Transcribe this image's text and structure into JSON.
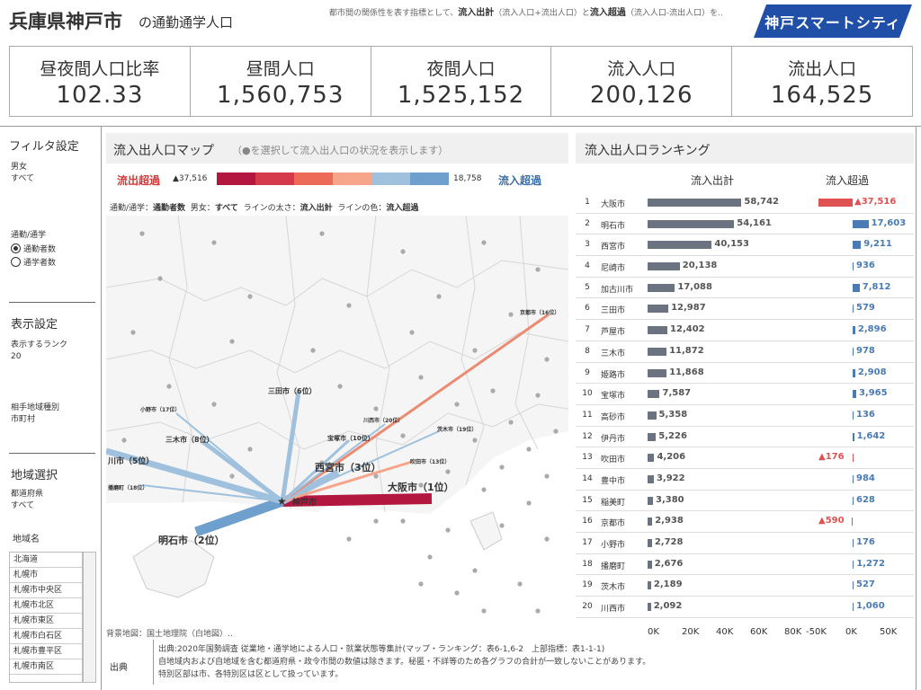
{
  "header": {
    "title": "兵庫県神戸市",
    "subtitle": "の通勤通学人口",
    "desc_prefix": "都市間の関係性を表す指標として、",
    "desc_b1": "流入出計",
    "desc_mid": "（流入人口+流出人口）と",
    "desc_b2": "流入超過",
    "desc_suffix": "（流入人口-流出人口）を..",
    "logo_text": "神戸スマートシティ"
  },
  "kpis": [
    {
      "label": "昼夜間人口比率",
      "value": "102.33"
    },
    {
      "label": "昼間人口",
      "value": "1,560,753"
    },
    {
      "label": "夜間人口",
      "value": "1,525,152"
    },
    {
      "label": "流入人口",
      "value": "200,126"
    },
    {
      "label": "流出人口",
      "value": "164,525"
    }
  ],
  "sidebar": {
    "filter_title": "フィルタ設定",
    "gender_label": "男女",
    "gender_value": "すべて",
    "mode_label": "通勤/通学",
    "mode_opt1": "通勤者数",
    "mode_opt2": "通学者数",
    "display_title": "表示設定",
    "rank_label": "表示するランク",
    "rank_value": "20",
    "area_type_label": "相手地域種別",
    "area_type_value": "市町村",
    "region_title": "地域選択",
    "pref_label": "都道府県",
    "pref_value": "すべて",
    "area_name_label": "地域名",
    "region_items": [
      "北海道",
      "札幌市",
      "札幌市中央区",
      "札幌市北区",
      "札幌市東区",
      "札幌市白石区",
      "札幌市豊平区",
      "札幌市南区"
    ]
  },
  "map": {
    "title": "流入出人口マップ",
    "subtitle": "（●を選択して流入出人口の状況を表示します）",
    "legend_red": "流出超過",
    "legend_red_val": "▲37,516",
    "legend_blue_val": "18,758",
    "legend_blue": "流入超過",
    "caption_1": "通勤/通学：",
    "caption_1b": "通勤者数",
    "caption_2": "男女：",
    "caption_2b": "すべて",
    "caption_3": "ラインの太さ：",
    "caption_3b": "流入出計",
    "caption_4": "ラインの色：",
    "caption_4b": "流入超過",
    "credit": "背景地図：国土地理院（白地図）..",
    "center_label": "神戸市",
    "labels": [
      {
        "name": "大阪市（1位）"
      },
      {
        "name": "明石市（2位）"
      },
      {
        "name": "西宮市（3位）"
      },
      {
        "name": "川市（5位）"
      },
      {
        "name": "三田市（6位）"
      },
      {
        "name": "三木市（8位）"
      },
      {
        "name": "宝塚市（10位）"
      },
      {
        "name": "吹田市（13位）"
      },
      {
        "name": "京都市（16位）"
      },
      {
        "name": "小野市（17位）"
      },
      {
        "name": "播磨町（18位）"
      },
      {
        "name": "茨木市（19位）"
      },
      {
        "name": "川西市（20位）"
      }
    ]
  },
  "ranking": {
    "title": "流入出人口ランキング",
    "col1": "流入出計",
    "col2": "流入超過",
    "axis1": [
      "0K",
      "20K",
      "40K",
      "60K",
      "80K"
    ],
    "axis2": [
      "-50K",
      "0K",
      "50K"
    ],
    "rows": [
      {
        "rank": "1",
        "name": "大阪市",
        "total": 58742,
        "total_label": "58,742",
        "excess": -37516,
        "excess_label": "▲37,516"
      },
      {
        "rank": "2",
        "name": "明石市",
        "total": 54161,
        "total_label": "54,161",
        "excess": 17603,
        "excess_label": "17,603"
      },
      {
        "rank": "3",
        "name": "西宮市",
        "total": 40153,
        "total_label": "40,153",
        "excess": 9211,
        "excess_label": "9,211"
      },
      {
        "rank": "4",
        "name": "尼崎市",
        "total": 20138,
        "total_label": "20,138",
        "excess": 936,
        "excess_label": "936"
      },
      {
        "rank": "5",
        "name": "加古川市",
        "total": 17088,
        "total_label": "17,088",
        "excess": 7812,
        "excess_label": "7,812"
      },
      {
        "rank": "6",
        "name": "三田市",
        "total": 12987,
        "total_label": "12,987",
        "excess": 579,
        "excess_label": "579"
      },
      {
        "rank": "7",
        "name": "芦屋市",
        "total": 12402,
        "total_label": "12,402",
        "excess": 2896,
        "excess_label": "2,896"
      },
      {
        "rank": "8",
        "name": "三木市",
        "total": 11872,
        "total_label": "11,872",
        "excess": 978,
        "excess_label": "978"
      },
      {
        "rank": "9",
        "name": "姫路市",
        "total": 11868,
        "total_label": "11,868",
        "excess": 2908,
        "excess_label": "2,908"
      },
      {
        "rank": "10",
        "name": "宝塚市",
        "total": 7587,
        "total_label": "7,587",
        "excess": 3965,
        "excess_label": "3,965"
      },
      {
        "rank": "11",
        "name": "高砂市",
        "total": 5358,
        "total_label": "5,358",
        "excess": 136,
        "excess_label": "136"
      },
      {
        "rank": "12",
        "name": "伊丹市",
        "total": 5226,
        "total_label": "5,226",
        "excess": 1642,
        "excess_label": "1,642"
      },
      {
        "rank": "13",
        "name": "吹田市",
        "total": 4206,
        "total_label": "4,206",
        "excess": -176,
        "excess_label": "▲176"
      },
      {
        "rank": "14",
        "name": "豊中市",
        "total": 3922,
        "total_label": "3,922",
        "excess": 984,
        "excess_label": "984"
      },
      {
        "rank": "15",
        "name": "稲美町",
        "total": 3380,
        "total_label": "3,380",
        "excess": 628,
        "excess_label": "628"
      },
      {
        "rank": "16",
        "name": "京都市",
        "total": 2938,
        "total_label": "2,938",
        "excess": -590,
        "excess_label": "▲590"
      },
      {
        "rank": "17",
        "name": "小野市",
        "total": 2728,
        "total_label": "2,728",
        "excess": 176,
        "excess_label": "176"
      },
      {
        "rank": "18",
        "name": "播磨町",
        "total": 2676,
        "total_label": "2,676",
        "excess": 1272,
        "excess_label": "1,272"
      },
      {
        "rank": "19",
        "name": "茨木市",
        "total": 2189,
        "total_label": "2,189",
        "excess": 527,
        "excess_label": "527"
      },
      {
        "rank": "20",
        "name": "川西市",
        "total": 2092,
        "total_label": "2,092",
        "excess": 1060,
        "excess_label": "1,060"
      }
    ]
  },
  "footer": {
    "label": "出典",
    "line1": "出典:2020年国勢調査 従業地・通学地による人口・就業状態等集計(マップ・ランキング：表6-1,6-2　上部指標：表1-1-1)",
    "line2": "自地域内および自地域を含む都道府県・政令市間の数値は除きます。秘匿・不詳等のため各グラフの合計が一致しないことがあります。",
    "line3": "特別区部は市、各特別区は区として扱っています。"
  },
  "colors": {
    "bar_gray": "#6b7280",
    "excess_red": "#e05252",
    "excess_blue": "#4a7bb5",
    "logo_blue": "#1f4fa6"
  }
}
